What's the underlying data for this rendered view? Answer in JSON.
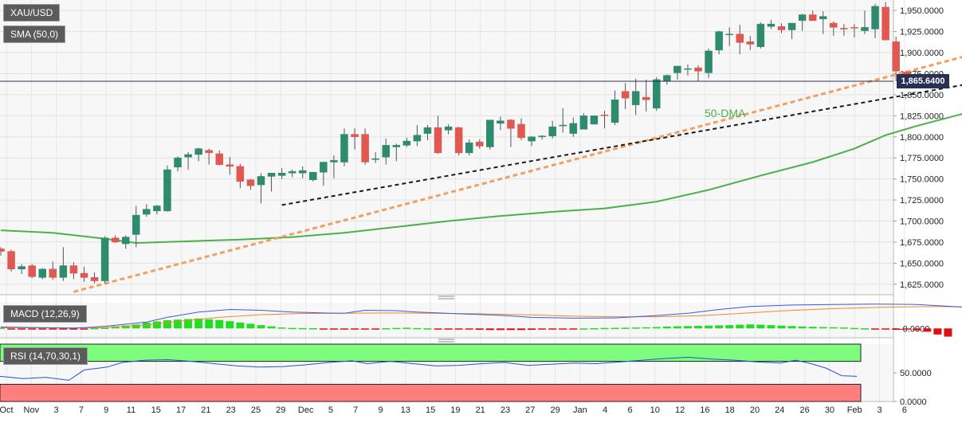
{
  "colors": {
    "up_candle": "#2e8b6e",
    "down_candle": "#e0584f",
    "sma_line": "#4bb04b",
    "fast_trendline": "#f0a060",
    "slow_trendline": "#1a1a1a",
    "macd_line": "#3b5ae0",
    "signal_line": "#f0882a",
    "hist_positive": "#22dd22",
    "hist_negative": "#dd1111",
    "rsi_line": "#2a4fd8",
    "rsi_overbought_zone": "#7dfc7d",
    "rsi_oversold_zone": "#ff7f7f",
    "price_line": "#283055"
  },
  "labels": {
    "symbol": "XAU/USD",
    "sma": "SMA (50,0)",
    "macd": "MACD (12,26,9)",
    "rsi": "RSI (14,70,30,1)",
    "sma_annotation": "50-DMA",
    "last_price": "1,865.6400"
  },
  "chart_data": [
    {
      "type": "candlestick",
      "title": "XAU/USD",
      "ylim": [
        1612.5,
        1962.5
      ],
      "y_ticks": [
        "1,950.0000",
        "1,925.0000",
        "1,900.0000",
        "1,875.0000",
        "1,850.0000",
        "1,825.0000",
        "1,800.0000",
        "1,775.0000",
        "1,750.0000",
        "1,725.0000",
        "1,700.0000",
        "1,675.0000",
        "1,650.0000",
        "1,625.0000"
      ],
      "y_tick_values": [
        1950,
        1925,
        1900,
        1875,
        1850,
        1825,
        1800,
        1775,
        1750,
        1725,
        1700,
        1675,
        1650,
        1625
      ],
      "x_tick_labels": [
        "Oct",
        "Nov",
        "3",
        "7",
        "9",
        "11",
        "15",
        "17",
        "21",
        "23",
        "25",
        "29",
        "Dec",
        "5",
        "7",
        "9",
        "13",
        "15",
        "19",
        "21",
        "23",
        "27",
        "29",
        "Jan",
        "4",
        "6",
        "10",
        "12",
        "16",
        "18",
        "20",
        "24",
        "26",
        "30",
        "Feb",
        "3",
        "6"
      ],
      "last_price": 1865.64,
      "candles": [
        [
          1667,
          1669,
          1659,
          1664
        ],
        [
          1664,
          1666,
          1640,
          1643
        ],
        [
          1643,
          1649,
          1637,
          1646
        ],
        [
          1647,
          1649,
          1632,
          1634
        ],
        [
          1633,
          1644,
          1631,
          1643
        ],
        [
          1643,
          1652,
          1630,
          1633
        ],
        [
          1633,
          1669,
          1629,
          1647
        ],
        [
          1647,
          1651,
          1631,
          1638
        ],
        [
          1638,
          1646,
          1628,
          1633
        ],
        [
          1633,
          1639,
          1626,
          1629
        ],
        [
          1629,
          1682,
          1626,
          1680
        ],
        [
          1680,
          1683,
          1674,
          1675
        ],
        [
          1673,
          1683,
          1667,
          1681
        ],
        [
          1684,
          1718,
          1669,
          1707
        ],
        [
          1708,
          1720,
          1705,
          1714
        ],
        [
          1712,
          1719,
          1708,
          1718
        ],
        [
          1712,
          1766,
          1711,
          1761
        ],
        [
          1764,
          1777,
          1759,
          1775
        ],
        [
          1776,
          1782,
          1761,
          1779
        ],
        [
          1779,
          1787,
          1771,
          1786
        ],
        [
          1784,
          1786,
          1767,
          1781
        ],
        [
          1780,
          1784,
          1766,
          1767
        ],
        [
          1767,
          1776,
          1755,
          1765
        ],
        [
          1765,
          1768,
          1739,
          1747
        ],
        [
          1749,
          1750,
          1737,
          1742
        ],
        [
          1743,
          1757,
          1721,
          1753
        ],
        [
          1753,
          1755,
          1735,
          1757
        ],
        [
          1754,
          1763,
          1750,
          1757
        ],
        [
          1757,
          1761,
          1752,
          1759
        ],
        [
          1757,
          1765,
          1751,
          1760
        ],
        [
          1749,
          1757,
          1747,
          1758
        ],
        [
          1758,
          1770,
          1742,
          1770
        ],
        [
          1770,
          1778,
          1751,
          1772
        ],
        [
          1770,
          1810,
          1765,
          1803
        ],
        [
          1803,
          1810,
          1785,
          1800
        ],
        [
          1803,
          1810,
          1767,
          1770
        ],
        [
          1773,
          1782,
          1769,
          1774
        ],
        [
          1776,
          1798,
          1767,
          1790
        ],
        [
          1788,
          1792,
          1771,
          1790
        ],
        [
          1790,
          1799,
          1788,
          1795
        ],
        [
          1795,
          1814,
          1789,
          1802
        ],
        [
          1804,
          1814,
          1796,
          1811
        ],
        [
          1811,
          1825,
          1780,
          1781
        ],
        [
          1808,
          1815,
          1803,
          1812
        ],
        [
          1811,
          1812,
          1778,
          1781
        ],
        [
          1781,
          1797,
          1778,
          1793
        ],
        [
          1794,
          1797,
          1786,
          1789
        ],
        [
          1788,
          1820,
          1785,
          1820
        ],
        [
          1816,
          1824,
          1808,
          1819
        ],
        [
          1820,
          1821,
          1788,
          1810
        ],
        [
          1815,
          1822,
          1796,
          1799
        ],
        [
          1795,
          1801,
          1789,
          1800
        ],
        [
          1800,
          1802,
          1797,
          1801
        ],
        [
          1801,
          1819,
          1798,
          1812
        ],
        [
          1813,
          1834,
          1805,
          1814
        ],
        [
          1804,
          1823,
          1800,
          1816
        ],
        [
          1809,
          1828,
          1809,
          1825
        ],
        [
          1815,
          1824,
          1815,
          1825
        ],
        [
          1826,
          1831,
          1810,
          1825
        ],
        [
          1817,
          1855,
          1814,
          1844
        ],
        [
          1854,
          1864,
          1833,
          1846
        ],
        [
          1838,
          1869,
          1826,
          1854
        ],
        [
          1847,
          1868,
          1830,
          1844
        ],
        [
          1834,
          1871,
          1831,
          1868
        ],
        [
          1866,
          1874,
          1862,
          1873
        ],
        [
          1876,
          1883,
          1868,
          1884
        ],
        [
          1881,
          1886,
          1873,
          1881
        ],
        [
          1882,
          1885,
          1866,
          1878
        ],
        [
          1876,
          1905,
          1870,
          1902
        ],
        [
          1903,
          1926,
          1898,
          1925
        ],
        [
          1922,
          1930,
          1908,
          1922
        ],
        [
          1922,
          1933,
          1898,
          1912
        ],
        [
          1913,
          1920,
          1903,
          1910
        ],
        [
          1907,
          1936,
          1905,
          1934
        ],
        [
          1931,
          1939,
          1928,
          1934
        ],
        [
          1931,
          1935,
          1923,
          1927
        ],
        [
          1927,
          1935,
          1916,
          1935
        ],
        [
          1938,
          1946,
          1926,
          1945
        ],
        [
          1945,
          1950,
          1938,
          1938
        ],
        [
          1940,
          1949,
          1922,
          1943
        ],
        [
          1935,
          1937,
          1920,
          1930
        ],
        [
          1929,
          1934,
          1920,
          1928
        ],
        [
          1930,
          1934,
          1918,
          1929
        ],
        [
          1926,
          1950,
          1922,
          1930
        ],
        [
          1928,
          1958,
          1917,
          1955
        ],
        [
          1954,
          1960,
          1917,
          1915
        ],
        [
          1913,
          1919,
          1866,
          1878
        ],
        [
          1877,
          1878,
          1864,
          1865
        ]
      ],
      "sma_50": [
        [
          0,
          1689
        ],
        [
          5,
          1686
        ],
        [
          10,
          1679
        ],
        [
          13,
          1674
        ],
        [
          18,
          1676
        ],
        [
          23,
          1678
        ],
        [
          28,
          1681
        ],
        [
          33,
          1686
        ],
        [
          38,
          1693
        ],
        [
          43,
          1700
        ],
        [
          48,
          1706
        ],
        [
          53,
          1711
        ],
        [
          58,
          1715
        ],
        [
          63,
          1723
        ],
        [
          68,
          1737
        ],
        [
          73,
          1754
        ],
        [
          78,
          1770
        ],
        [
          82,
          1786
        ],
        [
          85,
          1802
        ],
        [
          88,
          1813
        ],
        [
          92,
          1826
        ],
        [
          95,
          1836
        ],
        [
          97,
          1845
        ],
        [
          100,
          1849
        ]
      ],
      "trendlines": [
        {
          "style": "dashed",
          "color_key": "fast_trendline",
          "from": [
            7,
            1616
          ],
          "to": [
            105,
            1936
          ]
        },
        {
          "style": "dashed",
          "color_key": "slow_trendline",
          "from": [
            27,
            1719
          ],
          "to": [
            105,
            1889
          ]
        }
      ]
    },
    {
      "type": "line",
      "title": "MACD (12,26,9)",
      "ylim": [
        -0.8,
        2.2
      ],
      "y_ticks": [
        "-0.0000"
      ],
      "macd": [
        [
          0,
          0.12
        ],
        [
          7,
          0.02
        ],
        [
          10,
          0.18
        ],
        [
          14,
          0.55
        ],
        [
          16,
          0.95
        ],
        [
          19,
          1.4
        ],
        [
          22,
          1.62
        ],
        [
          25,
          1.55
        ],
        [
          28,
          1.4
        ],
        [
          31,
          1.32
        ],
        [
          33,
          1.3
        ],
        [
          35,
          1.55
        ],
        [
          38,
          1.52
        ],
        [
          40,
          1.4
        ],
        [
          44,
          1.25
        ],
        [
          48,
          1.12
        ],
        [
          51,
          0.95
        ],
        [
          55,
          0.88
        ],
        [
          59,
          0.9
        ],
        [
          63,
          1.1
        ],
        [
          66,
          1.3
        ],
        [
          69,
          1.62
        ],
        [
          72,
          1.88
        ],
        [
          76,
          2.0
        ],
        [
          80,
          2.05
        ],
        [
          84,
          2.08
        ],
        [
          88,
          2.05
        ],
        [
          92,
          1.85
        ],
        [
          95,
          1.65
        ],
        [
          97,
          1.42
        ],
        [
          100,
          0.55
        ]
      ],
      "signal": [
        [
          0,
          0.06
        ],
        [
          7,
          0.04
        ],
        [
          10,
          0.08
        ],
        [
          14,
          0.3
        ],
        [
          17,
          0.6
        ],
        [
          21,
          0.95
        ],
        [
          25,
          1.18
        ],
        [
          29,
          1.28
        ],
        [
          33,
          1.3
        ],
        [
          37,
          1.32
        ],
        [
          41,
          1.3
        ],
        [
          46,
          1.25
        ],
        [
          51,
          1.16
        ],
        [
          55,
          1.05
        ],
        [
          59,
          1.0
        ],
        [
          63,
          1.0
        ],
        [
          67,
          1.08
        ],
        [
          71,
          1.28
        ],
        [
          75,
          1.5
        ],
        [
          80,
          1.7
        ],
        [
          85,
          1.82
        ],
        [
          90,
          1.88
        ],
        [
          94,
          1.82
        ],
        [
          97,
          1.72
        ],
        [
          100,
          1.38
        ]
      ],
      "histogram": [
        0.06,
        -0.04,
        -0.06,
        -0.05,
        -0.06,
        -0.08,
        -0.06,
        -0.05,
        -0.02,
        0.03,
        0.06,
        0.18,
        0.26,
        0.34,
        0.5,
        0.6,
        0.7,
        0.75,
        0.8,
        0.85,
        0.78,
        0.72,
        0.62,
        0.5,
        0.4,
        0.28,
        0.18,
        0.08,
        0.04,
        0.03,
        0.02,
        -0.01,
        -0.04,
        -0.05,
        -0.03,
        -0.04,
        -0.02,
        0.02,
        0.04,
        0.06,
        0.03,
        0.01,
        -0.02,
        -0.05,
        -0.08,
        -0.1,
        -0.12,
        -0.14,
        -0.14,
        -0.14,
        -0.14,
        -0.12,
        -0.1,
        -0.08,
        -0.06,
        -0.03,
        0.0,
        0.02,
        0.04,
        0.05,
        0.06,
        0.08,
        0.1,
        0.12,
        0.16,
        0.18,
        0.2,
        0.22,
        0.24,
        0.26,
        0.28,
        0.32,
        0.34,
        0.32,
        0.28,
        0.24,
        0.2,
        0.17,
        0.14,
        0.12,
        0.1,
        0.08,
        0.04,
        0.01,
        -0.04,
        -0.08,
        -0.12,
        -0.1,
        -0.16,
        -0.28,
        -0.52,
        -0.7
      ]
    },
    {
      "type": "line",
      "title": "RSI (14,70,30,1)",
      "ylim": [
        0,
        100
      ],
      "y_ticks": [
        "50.0000",
        "0.0000"
      ],
      "y_tick_values": [
        50,
        0
      ],
      "overbought": 70,
      "oversold": 30,
      "rsi": [
        [
          0,
          44
        ],
        [
          3,
          40
        ],
        [
          6,
          42
        ],
        [
          9,
          37
        ],
        [
          11,
          55
        ],
        [
          14,
          60
        ],
        [
          16,
          68
        ],
        [
          19,
          72
        ],
        [
          22,
          73
        ],
        [
          25,
          70
        ],
        [
          28,
          66
        ],
        [
          31,
          62
        ],
        [
          34,
          60
        ],
        [
          37,
          61
        ],
        [
          40,
          64
        ],
        [
          43,
          68
        ],
        [
          46,
          71
        ],
        [
          48,
          66
        ],
        [
          51,
          70
        ],
        [
          54,
          66
        ],
        [
          57,
          62
        ],
        [
          60,
          63
        ],
        [
          63,
          66
        ],
        [
          66,
          68
        ],
        [
          69,
          63
        ],
        [
          72,
          65
        ],
        [
          75,
          67
        ],
        [
          78,
          66
        ],
        [
          81,
          69
        ],
        [
          84,
          72
        ],
        [
          87,
          75
        ],
        [
          90,
          77
        ],
        [
          93,
          74
        ],
        [
          96,
          72
        ],
        [
          99,
          69
        ],
        [
          102,
          67
        ],
        [
          104,
          72
        ],
        [
          106,
          66
        ],
        [
          108,
          58
        ],
        [
          110,
          45
        ],
        [
          112,
          44
        ]
      ]
    }
  ]
}
